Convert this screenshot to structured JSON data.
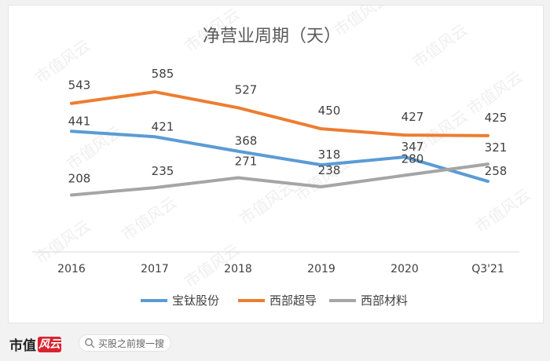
{
  "chart_data": {
    "type": "line",
    "title": "净营业周期（天）",
    "categories": [
      "2016",
      "2017",
      "2018",
      "2019",
      "2020",
      "Q3'21"
    ],
    "ylim": [
      0,
      700
    ],
    "grid": false,
    "legend_position": "bottom",
    "series": [
      {
        "name": "宝钛股份",
        "color": "#5b9bd5",
        "values": [
          441,
          421,
          368,
          318,
          347,
          258
        ]
      },
      {
        "name": "西部超导",
        "color": "#ed7d31",
        "values": [
          543,
          585,
          527,
          450,
          427,
          425
        ]
      },
      {
        "name": "西部材料",
        "color": "#a5a5a5",
        "values": [
          208,
          235,
          271,
          238,
          280,
          321
        ]
      }
    ]
  },
  "watermark": "市值风云",
  "footer": {
    "logo_text": "市值",
    "logo_mark": "风云",
    "search_placeholder": "买股之前搜一搜"
  },
  "colors": {
    "axis": "#d9d9d9",
    "label": "#404040",
    "title": "#595959",
    "brand": "#d9232e"
  }
}
